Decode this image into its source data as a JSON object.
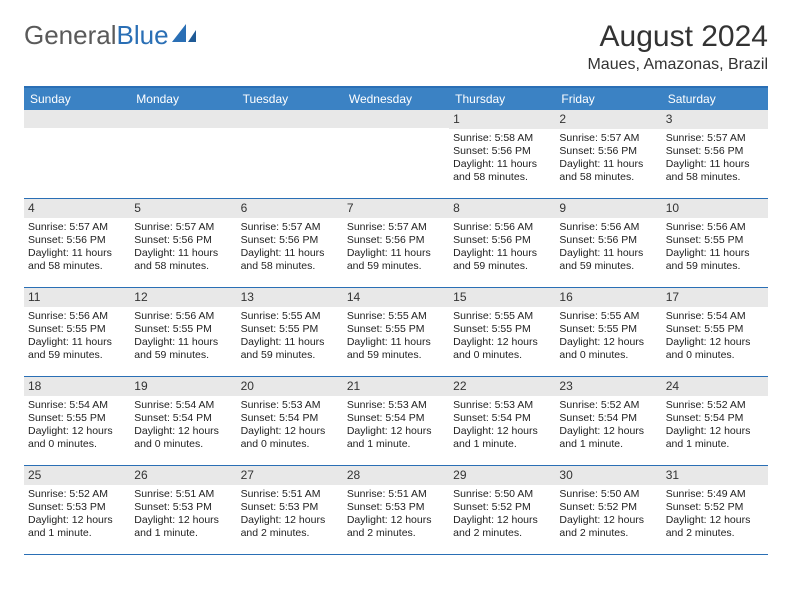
{
  "logo": {
    "general": "General",
    "blue": "Blue"
  },
  "title": "August 2024",
  "location": "Maues, Amazonas, Brazil",
  "colors": {
    "header_bg": "#3b82c4",
    "header_text": "#ffffff",
    "border": "#2a6fb5",
    "daybar_bg": "#e8e8e8",
    "text": "#222222",
    "logo_gray": "#5a5a5a",
    "logo_blue": "#2a6fb5"
  },
  "weekdays": [
    "Sunday",
    "Monday",
    "Tuesday",
    "Wednesday",
    "Thursday",
    "Friday",
    "Saturday"
  ],
  "weeks": [
    [
      {
        "n": "",
        "lines": []
      },
      {
        "n": "",
        "lines": []
      },
      {
        "n": "",
        "lines": []
      },
      {
        "n": "",
        "lines": []
      },
      {
        "n": "1",
        "lines": [
          "Sunrise: 5:58 AM",
          "Sunset: 5:56 PM",
          "Daylight: 11 hours and 58 minutes."
        ]
      },
      {
        "n": "2",
        "lines": [
          "Sunrise: 5:57 AM",
          "Sunset: 5:56 PM",
          "Daylight: 11 hours and 58 minutes."
        ]
      },
      {
        "n": "3",
        "lines": [
          "Sunrise: 5:57 AM",
          "Sunset: 5:56 PM",
          "Daylight: 11 hours and 58 minutes."
        ]
      }
    ],
    [
      {
        "n": "4",
        "lines": [
          "Sunrise: 5:57 AM",
          "Sunset: 5:56 PM",
          "Daylight: 11 hours and 58 minutes."
        ]
      },
      {
        "n": "5",
        "lines": [
          "Sunrise: 5:57 AM",
          "Sunset: 5:56 PM",
          "Daylight: 11 hours and 58 minutes."
        ]
      },
      {
        "n": "6",
        "lines": [
          "Sunrise: 5:57 AM",
          "Sunset: 5:56 PM",
          "Daylight: 11 hours and 58 minutes."
        ]
      },
      {
        "n": "7",
        "lines": [
          "Sunrise: 5:57 AM",
          "Sunset: 5:56 PM",
          "Daylight: 11 hours and 59 minutes."
        ]
      },
      {
        "n": "8",
        "lines": [
          "Sunrise: 5:56 AM",
          "Sunset: 5:56 PM",
          "Daylight: 11 hours and 59 minutes."
        ]
      },
      {
        "n": "9",
        "lines": [
          "Sunrise: 5:56 AM",
          "Sunset: 5:56 PM",
          "Daylight: 11 hours and 59 minutes."
        ]
      },
      {
        "n": "10",
        "lines": [
          "Sunrise: 5:56 AM",
          "Sunset: 5:55 PM",
          "Daylight: 11 hours and 59 minutes."
        ]
      }
    ],
    [
      {
        "n": "11",
        "lines": [
          "Sunrise: 5:56 AM",
          "Sunset: 5:55 PM",
          "Daylight: 11 hours and 59 minutes."
        ]
      },
      {
        "n": "12",
        "lines": [
          "Sunrise: 5:56 AM",
          "Sunset: 5:55 PM",
          "Daylight: 11 hours and 59 minutes."
        ]
      },
      {
        "n": "13",
        "lines": [
          "Sunrise: 5:55 AM",
          "Sunset: 5:55 PM",
          "Daylight: 11 hours and 59 minutes."
        ]
      },
      {
        "n": "14",
        "lines": [
          "Sunrise: 5:55 AM",
          "Sunset: 5:55 PM",
          "Daylight: 11 hours and 59 minutes."
        ]
      },
      {
        "n": "15",
        "lines": [
          "Sunrise: 5:55 AM",
          "Sunset: 5:55 PM",
          "Daylight: 12 hours and 0 minutes."
        ]
      },
      {
        "n": "16",
        "lines": [
          "Sunrise: 5:55 AM",
          "Sunset: 5:55 PM",
          "Daylight: 12 hours and 0 minutes."
        ]
      },
      {
        "n": "17",
        "lines": [
          "Sunrise: 5:54 AM",
          "Sunset: 5:55 PM",
          "Daylight: 12 hours and 0 minutes."
        ]
      }
    ],
    [
      {
        "n": "18",
        "lines": [
          "Sunrise: 5:54 AM",
          "Sunset: 5:55 PM",
          "Daylight: 12 hours and 0 minutes."
        ]
      },
      {
        "n": "19",
        "lines": [
          "Sunrise: 5:54 AM",
          "Sunset: 5:54 PM",
          "Daylight: 12 hours and 0 minutes."
        ]
      },
      {
        "n": "20",
        "lines": [
          "Sunrise: 5:53 AM",
          "Sunset: 5:54 PM",
          "Daylight: 12 hours and 0 minutes."
        ]
      },
      {
        "n": "21",
        "lines": [
          "Sunrise: 5:53 AM",
          "Sunset: 5:54 PM",
          "Daylight: 12 hours and 1 minute."
        ]
      },
      {
        "n": "22",
        "lines": [
          "Sunrise: 5:53 AM",
          "Sunset: 5:54 PM",
          "Daylight: 12 hours and 1 minute."
        ]
      },
      {
        "n": "23",
        "lines": [
          "Sunrise: 5:52 AM",
          "Sunset: 5:54 PM",
          "Daylight: 12 hours and 1 minute."
        ]
      },
      {
        "n": "24",
        "lines": [
          "Sunrise: 5:52 AM",
          "Sunset: 5:54 PM",
          "Daylight: 12 hours and 1 minute."
        ]
      }
    ],
    [
      {
        "n": "25",
        "lines": [
          "Sunrise: 5:52 AM",
          "Sunset: 5:53 PM",
          "Daylight: 12 hours and 1 minute."
        ]
      },
      {
        "n": "26",
        "lines": [
          "Sunrise: 5:51 AM",
          "Sunset: 5:53 PM",
          "Daylight: 12 hours and 1 minute."
        ]
      },
      {
        "n": "27",
        "lines": [
          "Sunrise: 5:51 AM",
          "Sunset: 5:53 PM",
          "Daylight: 12 hours and 2 minutes."
        ]
      },
      {
        "n": "28",
        "lines": [
          "Sunrise: 5:51 AM",
          "Sunset: 5:53 PM",
          "Daylight: 12 hours and 2 minutes."
        ]
      },
      {
        "n": "29",
        "lines": [
          "Sunrise: 5:50 AM",
          "Sunset: 5:52 PM",
          "Daylight: 12 hours and 2 minutes."
        ]
      },
      {
        "n": "30",
        "lines": [
          "Sunrise: 5:50 AM",
          "Sunset: 5:52 PM",
          "Daylight: 12 hours and 2 minutes."
        ]
      },
      {
        "n": "31",
        "lines": [
          "Sunrise: 5:49 AM",
          "Sunset: 5:52 PM",
          "Daylight: 12 hours and 2 minutes."
        ]
      }
    ]
  ]
}
